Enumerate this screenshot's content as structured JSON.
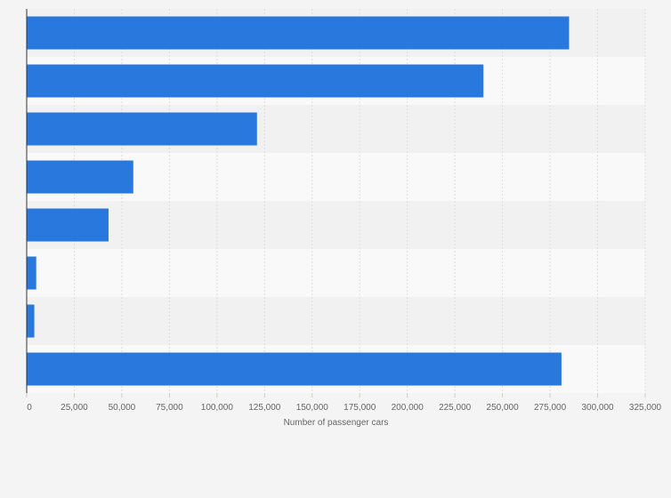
{
  "chart_data": {
    "type": "bar",
    "orientation": "horizontal",
    "categories": [
      "",
      "",
      "",
      "",
      "",
      "",
      "",
      ""
    ],
    "values": [
      285000,
      240000,
      121000,
      56000,
      43000,
      5000,
      4000,
      281000
    ],
    "xlabel": "Number of passenger cars",
    "ylabel": "",
    "xlim": [
      0,
      325000
    ],
    "xticks": [
      "0",
      "25,000",
      "50,000",
      "75,000",
      "100,000",
      "125,000",
      "150,000",
      "175,000",
      "200,000",
      "225,000",
      "250,000",
      "275,000",
      "300,000",
      "325,000"
    ],
    "grid": true,
    "legend": "none"
  },
  "colors": {
    "bar": "#2878de",
    "background": "#f4f4f4",
    "band_light": "#f9f9f9",
    "band_dark": "#f1f1f1",
    "gridline": "#dcdcdc",
    "axis": "#333333",
    "text": "#666666"
  }
}
